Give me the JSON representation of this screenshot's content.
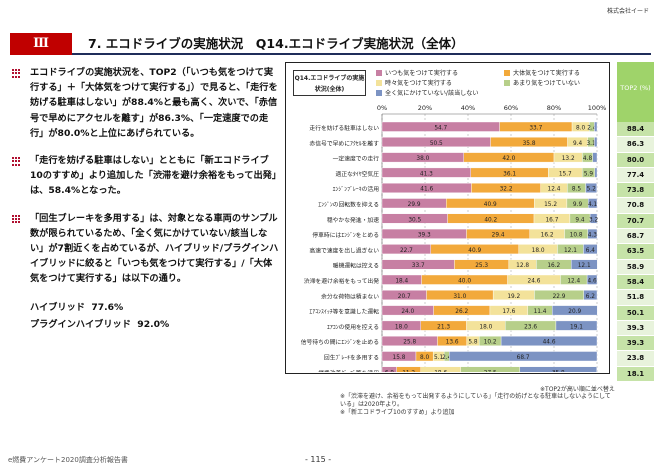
{
  "company": "株式会社イード",
  "header": {
    "section": "Ⅲ",
    "title": "7. エコドライブの実施状況　Q14.エコドライブ実施状況（全体）"
  },
  "left": {
    "paragraphs": [
      "エコドライブの実施状況を、TOP2（「いつも気をつけて実行する」＋「大体気をつけて実行する」）で見ると、「走行を妨げる駐車はしない」が88.4%と最も高く、次いで、「赤信号で早めにアクセルを離す」が86.3%、「一定速度での走行」が80.0%と上位にあげられている。",
      "「走行を妨げる駐車はしない」とともに「新エコドライブ10のすすめ」より追加した「渋滞を避け余裕をもって出発」は、58.4%となった。",
      "「回生ブレーキを多用する」は、対象となる車両のサンプル数が限られているため、「全く気にかけていない/該当しない」が7割近くを占めているが、ハイブリッド/プラグインハイブリッドに絞ると「いつも気をつけて実行する」/「大体気をつけて実行する」は以下の通り。"
    ],
    "hybrid": [
      {
        "label": "ハイブリッド",
        "value": "77.6%"
      },
      {
        "label": "プラグインハイブリッド",
        "value": "92.0%"
      }
    ]
  },
  "chart_box_title": "Q14.エコドライブの実施状況(全体)",
  "top2_header": "TOP2 (%)",
  "note_sorted": "※TOP2が高い順に並べ替え",
  "footnotes": [
    "※「渋滞を避け、余裕をもって出発するようにしている」「走行の妨げとなる駐車はしないようにしている」は2020年より。",
    "※「新エコドライブ10のすすめ」より追加"
  ],
  "footer": {
    "left": "e燃費アンケート2020調査分析報告書",
    "page": "- 115 -"
  },
  "chart_data": {
    "type": "bar",
    "orientation": "horizontal",
    "stacked": true,
    "xlim": [
      0,
      100
    ],
    "xticks": [
      "0%",
      "20%",
      "40%",
      "60%",
      "80%",
      "100%"
    ],
    "series": [
      {
        "name": "いつも気をつけて実行する",
        "color": "#c77fa3",
        "values": [
          54.7,
          50.5,
          38.0,
          41.3,
          41.6,
          29.9,
          30.5,
          39.3,
          22.7,
          33.7,
          18.4,
          20.7,
          24.0,
          18.0,
          25.8,
          15.8,
          6.8
        ]
      },
      {
        "name": "大体気をつけて実行する",
        "color": "#f2a93b",
        "values": [
          33.7,
          35.8,
          42.0,
          36.1,
          32.2,
          40.9,
          40.2,
          29.4,
          40.9,
          25.3,
          40.0,
          31.0,
          26.2,
          21.3,
          13.6,
          8.0,
          11.2
        ]
      },
      {
        "name": "時々気をつけて実行する",
        "color": "#f3e29a",
        "values": [
          8.0,
          9.4,
          13.2,
          15.7,
          12.4,
          15.2,
          16.7,
          16.2,
          18.0,
          12.8,
          24.6,
          19.2,
          17.6,
          18.0,
          5.8,
          5.1,
          18.6
        ]
      },
      {
        "name": "あまり気をつけていない",
        "color": "#b7cf8a",
        "values": [
          2.4,
          3.1,
          4.8,
          5.9,
          8.5,
          9.9,
          9.4,
          10.8,
          12.1,
          16.2,
          12.4,
          22.9,
          11.4,
          23.6,
          10.2,
          2.4,
          27.5
        ]
      },
      {
        "name": "全く気にかけていない/該当しない",
        "color": "#7c93c3",
        "values": [
          1.2,
          1.2,
          2.0,
          1.0,
          5.2,
          4.1,
          3.2,
          4.3,
          6.4,
          12.1,
          4.6,
          6.2,
          20.9,
          19.1,
          44.6,
          68.7,
          35.8
        ]
      }
    ],
    "categories": [
      "走行を妨げる駐車はしない",
      "赤信号で早めにｱｸｾﾙを離す",
      "一定速度での走行",
      "適正なﾀｲﾔ空気圧",
      "ｴﾝｼﾞﾝﾌﾞﾚｰｷの活用",
      "ｴﾝｼﾞﾝの回転数を抑える",
      "穏やかな発進・加速",
      "停車時にはｴﾝｼﾞﾝをとめる",
      "高速で速度を出し過ぎない",
      "暖機運転は控える",
      "渋滞を避け余裕をもって出発",
      "余分な荷物は積まない",
      "ｴｱｺﾝｽｲｯﾁ等を意識した運転",
      "ｴｱｺﾝの使用を控える",
      "信号待ちの間にｴﾝｼﾞﾝを止める",
      "回生ﾌﾞﾚｰｷを多用する",
      "燃費改善ｸﾞｯｽﾞ等を活用"
    ],
    "top2": [
      "88.4",
      "86.3",
      "80.0",
      "77.4",
      "73.8",
      "70.8",
      "70.7",
      "68.7",
      "63.5",
      "58.9",
      "58.4",
      "51.8",
      "50.1",
      "39.3",
      "39.3",
      "23.8",
      "18.1"
    ]
  }
}
